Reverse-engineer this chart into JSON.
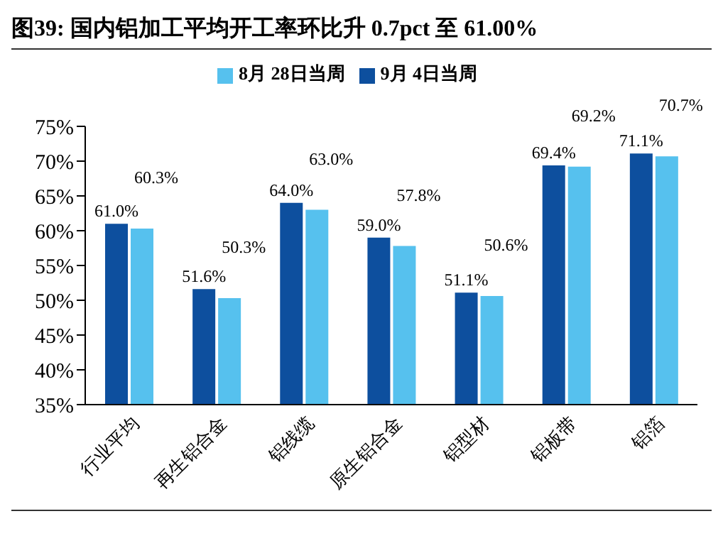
{
  "chart_data": {
    "type": "bar",
    "title": "图39:  国内铝加工平均开工率环比升 0.7pct 至 61.00%",
    "categories": [
      "行业平均",
      "再生铝合金",
      "铝线缆",
      "原生铝合金",
      "铝型材",
      "铝板带",
      "铝箔"
    ],
    "series": [
      {
        "name": "9月 4日当周",
        "color": "#0d4f9e",
        "values": [
          61.0,
          51.6,
          64.0,
          59.0,
          51.1,
          69.4,
          71.1
        ],
        "value_labels": [
          "61.0%",
          "51.6%",
          "64.0%",
          "59.0%",
          "51.1%",
          "69.4%",
          "71.1%"
        ]
      },
      {
        "name": "8月 28日当周",
        "color": "#56c1ee",
        "values": [
          60.3,
          50.3,
          63.0,
          57.8,
          50.6,
          69.2,
          70.7
        ],
        "value_labels": [
          "60.3%",
          "50.3%",
          "63.0%",
          "57.8%",
          "50.6%",
          "69.2%",
          "70.7%"
        ]
      }
    ],
    "ylim": [
      35,
      75
    ],
    "yticks": [
      {
        "value": 35,
        "label": "35%"
      },
      {
        "value": 40,
        "label": "40%"
      },
      {
        "value": 45,
        "label": "45%"
      },
      {
        "value": 50,
        "label": "50%"
      },
      {
        "value": 55,
        "label": "55%"
      },
      {
        "value": 60,
        "label": "60%"
      },
      {
        "value": 65,
        "label": "65%"
      },
      {
        "value": 70,
        "label": "70%"
      },
      {
        "value": 75,
        "label": "75%"
      }
    ],
    "grid": false,
    "legend": "top"
  }
}
